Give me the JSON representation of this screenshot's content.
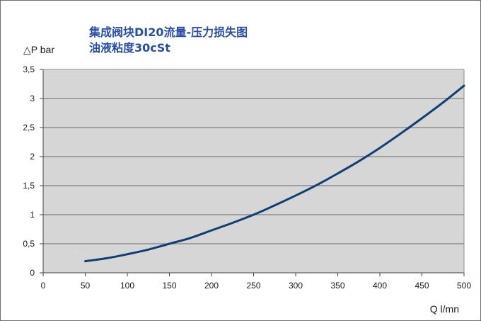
{
  "chart_data": {
    "type": "line",
    "title": "集成阀块DI20流量-压力损失图",
    "subtitle": "油液粘度30cSt",
    "xlabel": "Q l/mn",
    "ylabel": "△P bar",
    "xlim": [
      0,
      500
    ],
    "ylim": [
      0,
      3.5
    ],
    "grid": "horizontal",
    "x_ticks": [
      "0",
      "50",
      "100",
      "150",
      "200",
      "250",
      "300",
      "350",
      "400",
      "450",
      "500"
    ],
    "y_ticks": [
      "0",
      "0,5",
      "1",
      "1,5",
      "2",
      "2,5",
      "3",
      "3,5"
    ],
    "line_color": "#0d3f74",
    "plot_bg": "#d6d6d6",
    "series": [
      {
        "x": [
          50,
          75,
          100,
          125,
          150,
          175,
          200,
          225,
          250,
          275,
          300,
          325,
          350,
          375,
          400,
          425,
          450,
          475,
          500
        ],
        "y": [
          0.2,
          0.25,
          0.32,
          0.4,
          0.5,
          0.6,
          0.73,
          0.86,
          1.0,
          1.16,
          1.33,
          1.51,
          1.71,
          1.92,
          2.15,
          2.4,
          2.66,
          2.93,
          3.22
        ]
      }
    ]
  }
}
